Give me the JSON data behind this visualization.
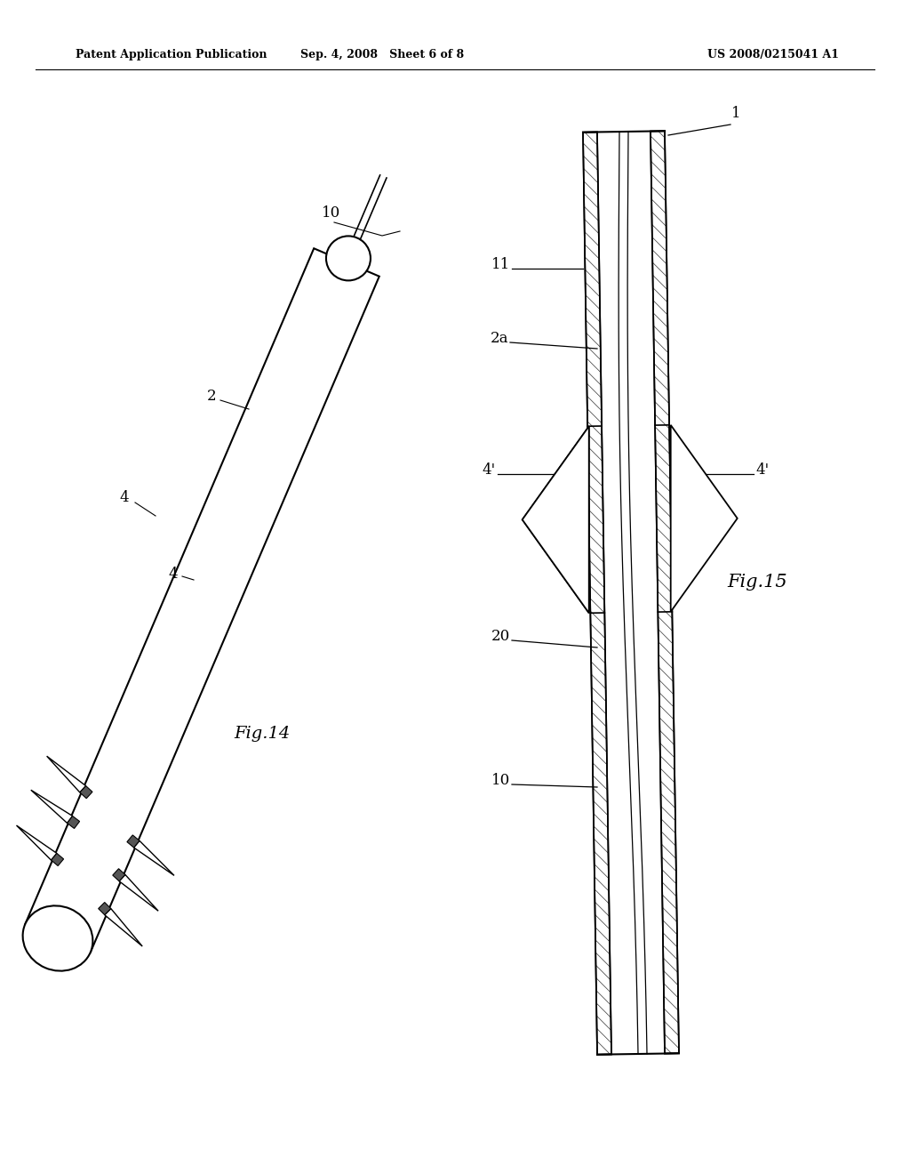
{
  "bg_color": "#ffffff",
  "line_color": "#000000",
  "header_left": "Patent Application Publication",
  "header_mid": "Sep. 4, 2008   Sheet 6 of 8",
  "header_right": "US 2008/0215041 A1",
  "fig14_label": "Fig.14",
  "fig15_label": "Fig.15"
}
